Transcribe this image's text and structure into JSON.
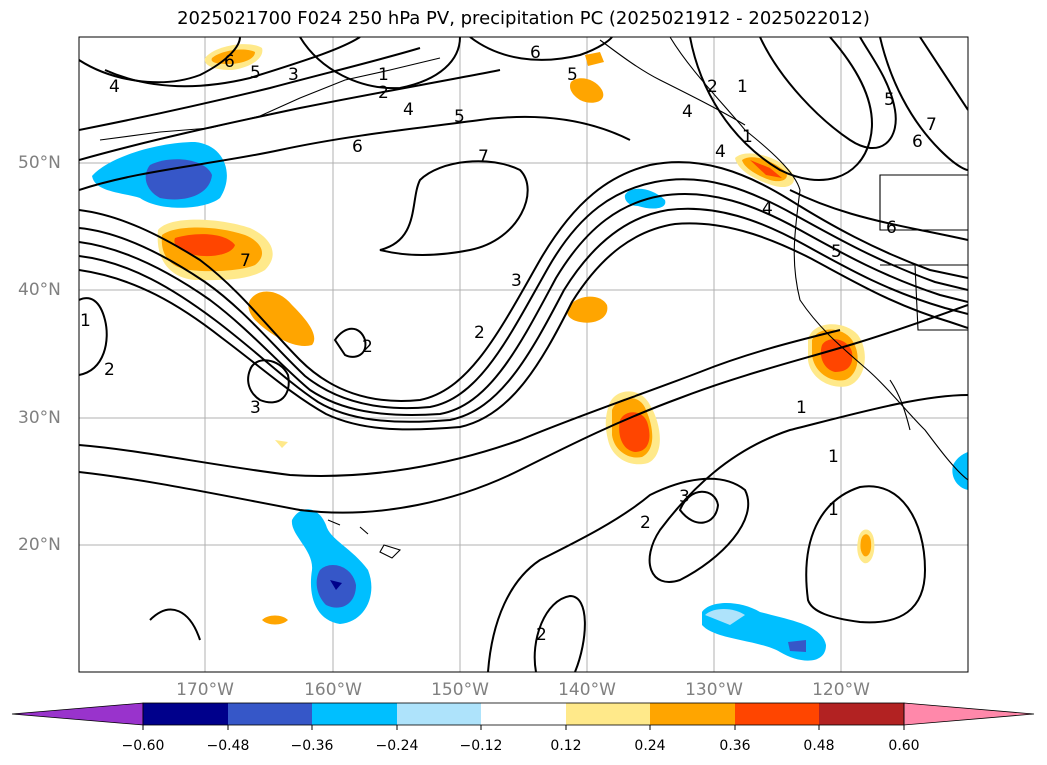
{
  "title": "2025021700 F024 250 hPa PV, precipitation PC (2025021912 - 2025022012)",
  "lon_labels": [
    "170°W",
    "160°W",
    "150°W",
    "140°W",
    "130°W",
    "120°W"
  ],
  "lat_labels": [
    "50°N",
    "40°N",
    "30°N",
    "20°N"
  ],
  "contour_labels": [
    "6",
    "5",
    "3",
    "1",
    "2",
    "4",
    "5",
    "6",
    "7",
    "4",
    "6",
    "5",
    "2",
    "1",
    "4",
    "4",
    "1",
    "5",
    "7",
    "6",
    "4",
    "6",
    "5",
    "7",
    "3",
    "2",
    "1",
    "2",
    "3",
    "1",
    "1",
    "2",
    "3",
    "2",
    "1",
    "2"
  ],
  "colorbar": {
    "tick_labels": [
      "−0.60",
      "−0.48",
      "−0.36",
      "−0.24",
      "−0.12",
      "0.12",
      "0.24",
      "0.36",
      "0.48",
      "0.60"
    ],
    "colors": [
      "#9933cc",
      "#00008b",
      "#3657c8",
      "#00bfff",
      "#aee3fb",
      "#ffffff",
      "#ffe98a",
      "#ffa500",
      "#ff4500",
      "#b22222",
      "#ff88aa"
    ]
  }
}
